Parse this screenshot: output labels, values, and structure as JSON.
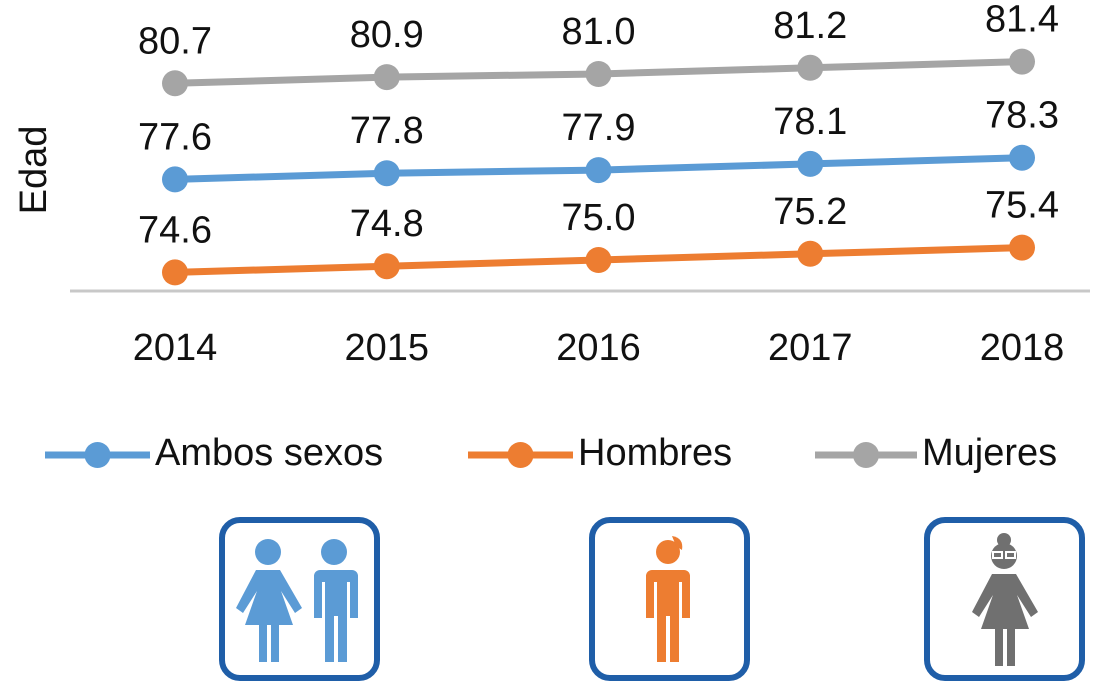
{
  "chart_data": {
    "type": "line",
    "y_label": "Edad",
    "categories": [
      "2014",
      "2015",
      "2016",
      "2017",
      "2018"
    ],
    "series": [
      {
        "name": "Ambos sexos",
        "color": "#5b9bd5",
        "values": [
          77.6,
          77.8,
          77.9,
          78.1,
          78.3
        ],
        "value_labels": [
          "77.6",
          "77.8",
          "77.9",
          "78.1",
          "78.3"
        ]
      },
      {
        "name": "Hombres",
        "color": "#ed7d31",
        "values": [
          74.6,
          74.8,
          75.0,
          75.2,
          75.4
        ],
        "value_labels": [
          "74.6",
          "74.8",
          "75.0",
          "75.2",
          "75.4"
        ]
      },
      {
        "name": "Mujeres",
        "color": "#a5a5a5",
        "values": [
          80.7,
          80.9,
          81.0,
          81.2,
          81.4
        ],
        "value_labels": [
          "80.7",
          "80.9",
          "81.0",
          "81.2",
          "81.4"
        ]
      }
    ],
    "ylim": [
      74,
      81.6
    ],
    "legend": "bottom"
  }
}
